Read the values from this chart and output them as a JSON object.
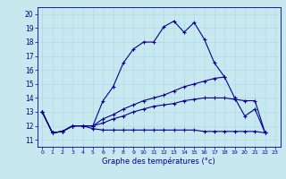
{
  "xlabel": "Graphe des températures (°c)",
  "bg_color": "#c8e8f0",
  "line_color": "#00008b",
  "grid_color": "#b0d8e8",
  "xlim": [
    -0.5,
    23.5
  ],
  "ylim": [
    10.5,
    20.5
  ],
  "xticks": [
    0,
    1,
    2,
    3,
    4,
    5,
    6,
    7,
    8,
    9,
    10,
    11,
    12,
    13,
    14,
    15,
    16,
    17,
    18,
    19,
    20,
    21,
    22,
    23
  ],
  "yticks": [
    11,
    12,
    13,
    14,
    15,
    16,
    17,
    18,
    19,
    20
  ],
  "line1_x": [
    0,
    1,
    2,
    3,
    4,
    5,
    6,
    7,
    8,
    9,
    10,
    11,
    12,
    13,
    14,
    15,
    16,
    17,
    18
  ],
  "line1_y": [
    13.0,
    11.5,
    11.6,
    12.0,
    12.0,
    12.0,
    13.8,
    14.8,
    16.5,
    17.5,
    18.0,
    18.0,
    19.1,
    19.5,
    18.7,
    19.4,
    18.2,
    16.5,
    15.5
  ],
  "line2_x": [
    0,
    1,
    2,
    3,
    4,
    5,
    6,
    7,
    8,
    9,
    10,
    11,
    12,
    13,
    14,
    15,
    16,
    17,
    18,
    19,
    20,
    21,
    22
  ],
  "line2_y": [
    13.0,
    11.5,
    11.6,
    12.0,
    12.0,
    12.0,
    12.5,
    12.8,
    13.2,
    13.5,
    13.8,
    14.0,
    14.2,
    14.5,
    14.8,
    15.0,
    15.2,
    15.4,
    15.5,
    14.0,
    12.7,
    13.2,
    11.5
  ],
  "line3_x": [
    0,
    1,
    2,
    3,
    4,
    5,
    6,
    7,
    8,
    9,
    10,
    11,
    12,
    13,
    14,
    15,
    16,
    17,
    18,
    19,
    20,
    21,
    22
  ],
  "line3_y": [
    13.0,
    11.5,
    11.6,
    12.0,
    12.0,
    12.0,
    12.2,
    12.5,
    12.7,
    13.0,
    13.2,
    13.4,
    13.5,
    13.6,
    13.8,
    13.9,
    14.0,
    14.0,
    14.0,
    13.9,
    13.8,
    13.8,
    11.5
  ],
  "line4_x": [
    0,
    1,
    2,
    3,
    4,
    5,
    6,
    7,
    8,
    9,
    10,
    11,
    12,
    13,
    14,
    15,
    16,
    17,
    18,
    19,
    20,
    21,
    22
  ],
  "line4_y": [
    13.0,
    11.5,
    11.6,
    12.0,
    12.0,
    11.8,
    11.7,
    11.7,
    11.7,
    11.7,
    11.7,
    11.7,
    11.7,
    11.7,
    11.7,
    11.7,
    11.6,
    11.6,
    11.6,
    11.6,
    11.6,
    11.6,
    11.5
  ]
}
